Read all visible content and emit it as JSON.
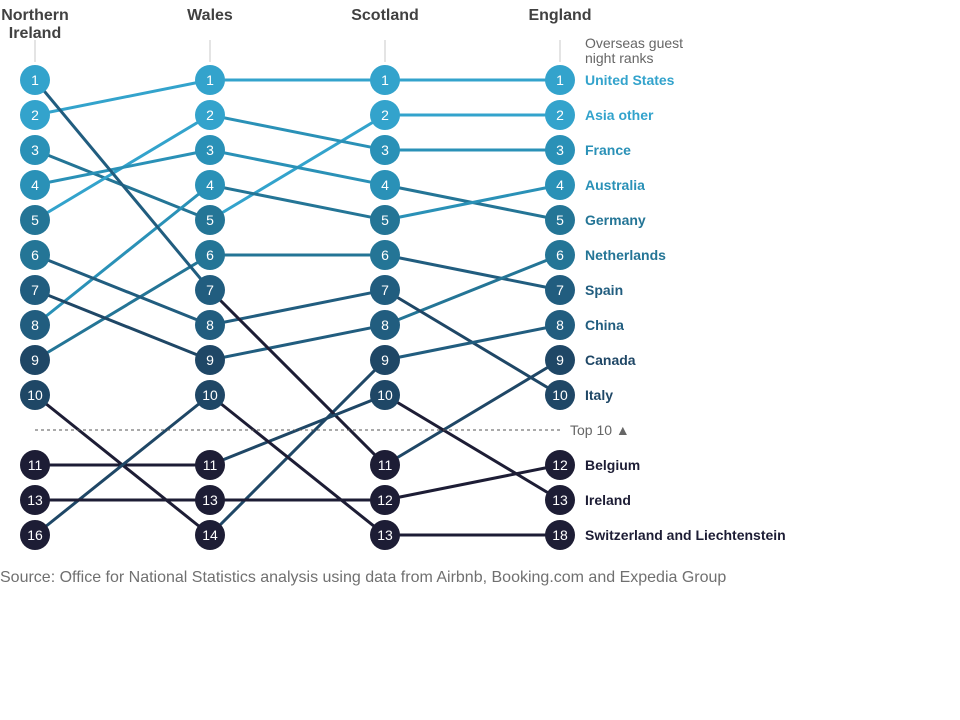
{
  "chart_data": {
    "type": "slope",
    "columns": [
      "Northern Ireland",
      "Wales",
      "Scotland",
      "England"
    ],
    "rank_label": "Overseas guest night ranks",
    "divider_label": "Top 10 ▲",
    "series": [
      {
        "name": "United States",
        "ranks": [
          2,
          1,
          1,
          1
        ]
      },
      {
        "name": "Asia other",
        "ranks": [
          3,
          5,
          2,
          2
        ]
      },
      {
        "name": "France",
        "ranks": [
          5,
          2,
          3,
          3
        ]
      },
      {
        "name": "Germany",
        "ranks": [
          4,
          3,
          4,
          5
        ]
      },
      {
        "name": "Australia",
        "ranks": [
          8,
          4,
          5,
          4
        ]
      },
      {
        "name": "Spain",
        "ranks": [
          9,
          6,
          6,
          7
        ]
      },
      {
        "name": "Netherlands",
        "ranks": [
          7,
          9,
          8,
          6
        ]
      },
      {
        "name": "Italy",
        "ranks": [
          6,
          8,
          7,
          10
        ]
      },
      {
        "name": "China",
        "ranks": [
          10,
          14,
          9,
          8
        ]
      },
      {
        "name": "Canada",
        "ranks": [
          1,
          7,
          11,
          9
        ]
      },
      {
        "name": "Ireland",
        "ranks": [
          11,
          11,
          10,
          13
        ]
      },
      {
        "name": "Switzerland and Liechtenstein",
        "ranks": [
          16,
          10,
          13,
          18
        ]
      },
      {
        "name": "Belgium",
        "ranks": [
          13,
          13,
          12,
          12
        ]
      }
    ],
    "colors": {
      "node_scale": [
        "#1d2f49",
        "#1f4766",
        "#215d7f",
        "#247596",
        "#2a91b7",
        "#33a3cc"
      ],
      "lowest_nodes": "#1d1d35",
      "guide": "#c8c8c8",
      "divider": "#555555"
    }
  },
  "source": "Source: Office for National Statistics analysis using data from Airbnb, Booking.com and Expedia Group"
}
